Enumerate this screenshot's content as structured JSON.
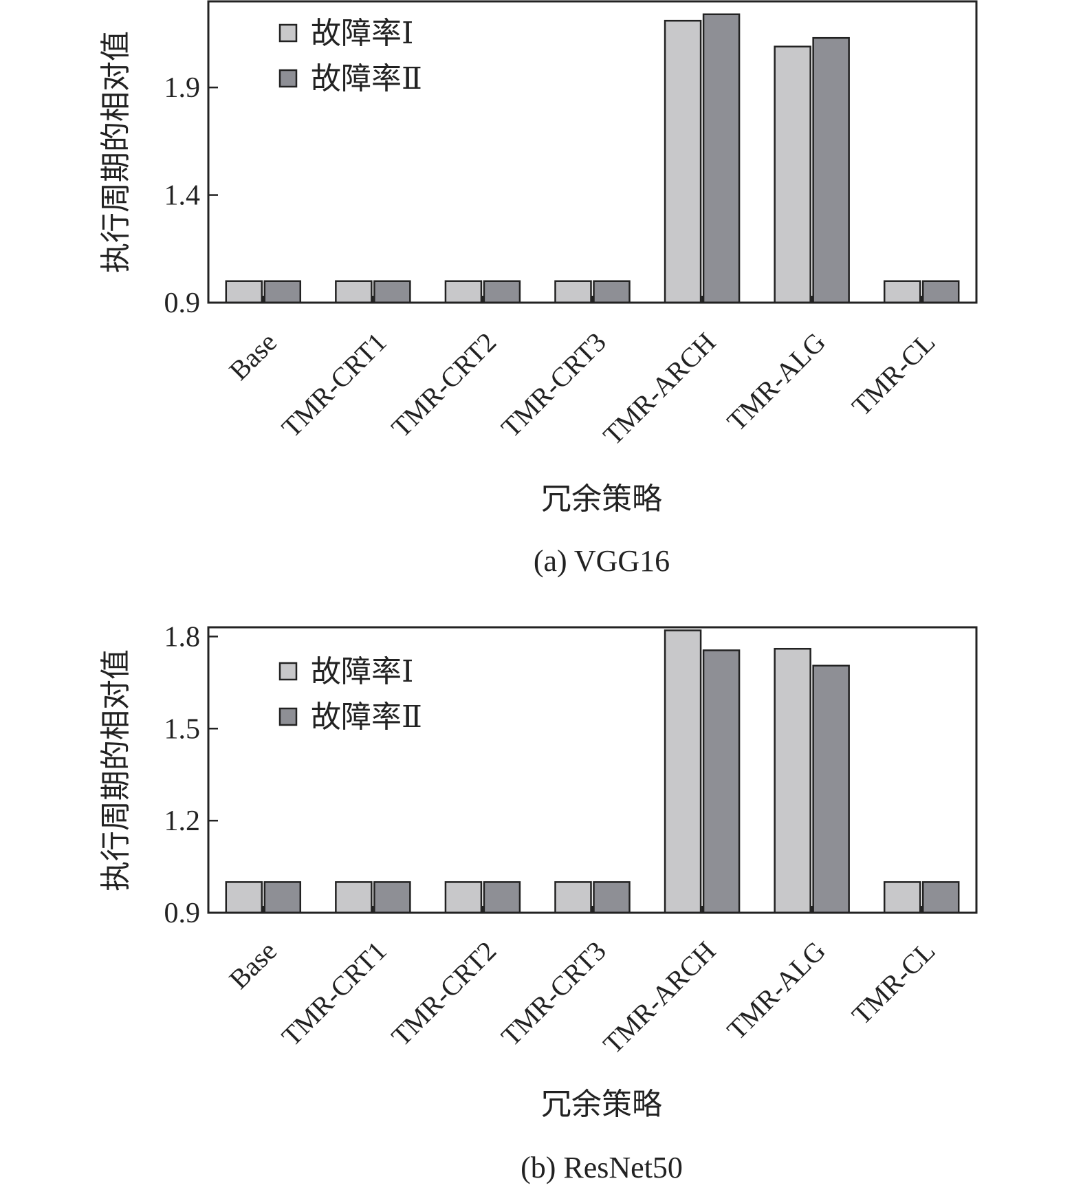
{
  "chart_data": [
    {
      "type": "bar",
      "caption": "(a)  VGG16",
      "xlabel": "冗余策略",
      "ylabel": "执行周期的相对值",
      "yticks": [
        0.9,
        1.4,
        1.9
      ],
      "ylim": [
        0.9,
        2.3
      ],
      "grid": false,
      "legend_position": "top-left",
      "categories": [
        "Base",
        "TMR-CRT1",
        "TMR-CRT2",
        "TMR-CRT3",
        "TMR-ARCH",
        "TMR-ALG",
        "TMR-CL"
      ],
      "series": [
        {
          "name": "故障率Ⅰ",
          "color": "#c8c8ca",
          "values": [
            1.0,
            1.0,
            1.0,
            1.0,
            2.21,
            2.09,
            1.0
          ]
        },
        {
          "name": "故障率Ⅱ",
          "color": "#8e8f95",
          "values": [
            1.0,
            1.0,
            1.0,
            1.0,
            2.24,
            2.13,
            1.0
          ]
        }
      ]
    },
    {
      "type": "bar",
      "caption": "(b)  ResNet50",
      "xlabel": "冗余策略",
      "ylabel": "执行周期的相对值",
      "yticks": [
        0.9,
        1.2,
        1.5,
        1.8
      ],
      "ylim": [
        0.9,
        1.83
      ],
      "grid": false,
      "legend_position": "top-left",
      "categories": [
        "Base",
        "TMR-CRT1",
        "TMR-CRT2",
        "TMR-CRT3",
        "TMR-ARCH",
        "TMR-ALG",
        "TMR-CL"
      ],
      "series": [
        {
          "name": "故障率Ⅰ",
          "color": "#c8c8ca",
          "values": [
            1.0,
            1.0,
            1.0,
            1.0,
            1.82,
            1.76,
            1.0
          ]
        },
        {
          "name": "故障率Ⅱ",
          "color": "#8e8f95",
          "values": [
            1.0,
            1.0,
            1.0,
            1.0,
            1.755,
            1.705,
            1.0
          ]
        }
      ]
    }
  ]
}
